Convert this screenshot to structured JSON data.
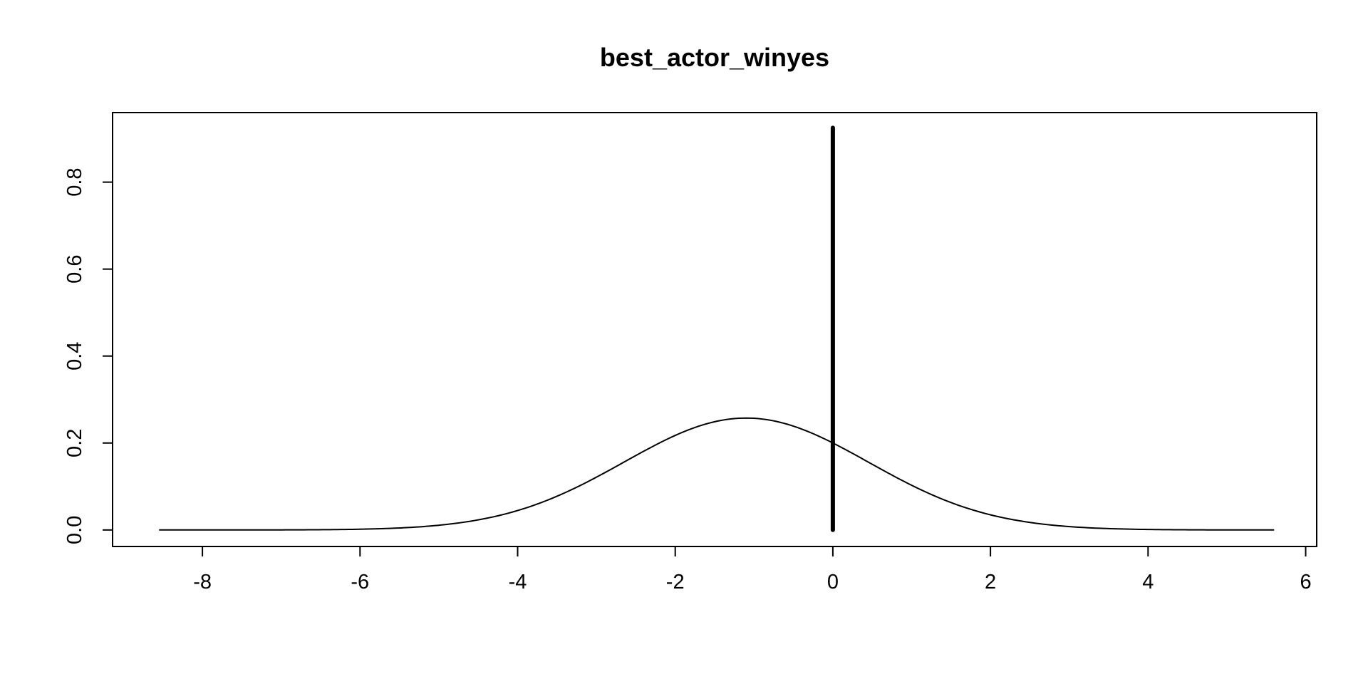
{
  "chart_data": {
    "type": "line",
    "title": "best_actor_winyes",
    "xlabel": "",
    "ylabel": "",
    "xlim": [
      -9.14,
      6.14
    ],
    "ylim": [
      -0.038,
      0.96
    ],
    "x_ticks": [
      -8,
      -6,
      -4,
      -2,
      0,
      2,
      4,
      6
    ],
    "x_tick_labels": [
      "-8",
      "-6",
      "-4",
      "-2",
      "0",
      "2",
      "4",
      "6"
    ],
    "y_ticks": [
      0.0,
      0.2,
      0.4,
      0.6,
      0.8
    ],
    "y_tick_labels": [
      "0.0",
      "0.2",
      "0.4",
      "0.6",
      "0.8"
    ],
    "grid": false,
    "legend": "none",
    "series": [
      {
        "kind": "density",
        "color": "#000000",
        "distribution": {
          "family": "normal",
          "mean": -1.1,
          "sd": 1.55
        },
        "x_range": [
          -8.55,
          5.6
        ]
      },
      {
        "kind": "point_mass",
        "color": "#000000",
        "x": 0,
        "y": [
          0,
          0.925
        ]
      }
    ]
  }
}
